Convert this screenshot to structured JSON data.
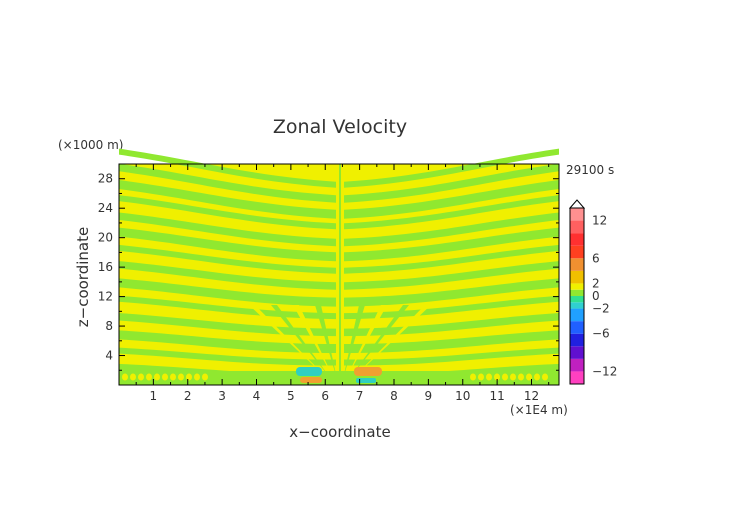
{
  "chart_data": {
    "type": "heatmap",
    "title": "Zonal Velocity",
    "xlabel": "x−coordinate",
    "ylabel": "z−coordinate",
    "x_unit": "(×1E4 m)",
    "y_unit": "(×1000 m)",
    "time_label": "29100 s",
    "xlim": [
      0,
      12.8
    ],
    "ylim": [
      0,
      30
    ],
    "x_ticks": [
      "1",
      "2",
      "3",
      "4",
      "5",
      "6",
      "7",
      "8",
      "9",
      "10",
      "11",
      "12"
    ],
    "y_ticks": [
      "4",
      "8",
      "12",
      "16",
      "20",
      "24",
      "28"
    ],
    "colorbar": {
      "labels": [
        "12",
        "6",
        "2",
        "0",
        "−2",
        "−6",
        "−12"
      ],
      "label_values": [
        12,
        6,
        2,
        0,
        -2,
        -6,
        -12
      ],
      "vmin": -14,
      "vmax": 14
    },
    "field_description_levels": [
      0,
      2
    ]
  },
  "colors": {
    "positive_band": "#f0f000",
    "near_zero_band": "#90e830",
    "warm": "#f0a030",
    "cool": "#30d0c0"
  }
}
